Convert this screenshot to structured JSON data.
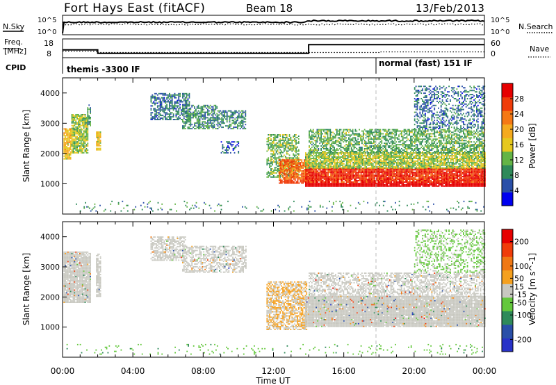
{
  "header": {
    "station": "Fort Hays East (fitACF)",
    "beam": "Beam 18",
    "date": "13/Feb/2013"
  },
  "noise_panel": {
    "left_label": "N.Sky",
    "left_ticks": [
      "10^5",
      "10^0"
    ],
    "right_ticks": [
      "10^5",
      "10^0"
    ],
    "right_label": "N.Search"
  },
  "freq_panel": {
    "left_label_line1": "Freq.",
    "left_label_line2": "[MHz]",
    "left_ticks": [
      "18",
      "8"
    ],
    "right_ticks": [
      "60",
      "0"
    ],
    "right_label": "Nave",
    "freq_steps": [
      {
        "t_start": 0.0,
        "t_end": 2.0,
        "mhz": 12.5
      },
      {
        "t_start": 2.0,
        "t_end": 14.0,
        "mhz": 10.5
      },
      {
        "t_start": 14.0,
        "t_end": 24.0,
        "mhz": 15.5
      }
    ],
    "nave_steps": [
      {
        "t_start": 0.0,
        "t_end": 2.0,
        "value": 22
      },
      {
        "t_start": 2.0,
        "t_end": 18.0,
        "value": 18
      },
      {
        "t_start": 18.0,
        "t_end": 24.0,
        "value": 20
      }
    ]
  },
  "cpid_panel": {
    "label": "CPID",
    "modes": [
      {
        "t_start": 0.0,
        "text": "themis -3300 IF"
      },
      {
        "t_start": 18.0,
        "text": "normal (fast) 151 IF"
      }
    ]
  },
  "x_axis": {
    "title": "Time UT",
    "ticks": [
      "00:00",
      "04:00",
      "08:00",
      "12:00",
      "16:00",
      "20:00",
      "00:00"
    ]
  },
  "chart_data": [
    {
      "type": "heatmap",
      "name": "power",
      "xlabel": "Time UT",
      "ylabel": "Slant Range [km]",
      "xlim": [
        0,
        24
      ],
      "ylim": [
        0,
        4500
      ],
      "yticks": [
        "1000",
        "2000",
        "3000",
        "4000"
      ],
      "colorbar": {
        "label": "Power [dB]",
        "ticks": [
          "28",
          "24",
          "20",
          "16",
          "12",
          "8",
          "4"
        ],
        "tick_values": [
          28,
          24,
          20,
          16,
          12,
          8,
          4
        ],
        "colors": [
          "#0000f0",
          "#2a4fa8",
          "#2f8a5a",
          "#64b446",
          "#e6c81e",
          "#f5aa1e",
          "#f57814",
          "#f03c0a",
          "#e60000"
        ],
        "range": [
          0,
          32
        ]
      },
      "blobs": [
        {
          "t": [
            0.05,
            0.5
          ],
          "r": [
            1800,
            2800
          ],
          "level": 18,
          "density": 0.9
        },
        {
          "t": [
            0.5,
            1.4
          ],
          "r": [
            2000,
            3300
          ],
          "level": 14,
          "density": 0.85
        },
        {
          "t": [
            1.4,
            1.6
          ],
          "r": [
            2900,
            3600
          ],
          "level": 9,
          "density": 0.7
        },
        {
          "t": [
            1.9,
            2.2
          ],
          "r": [
            2100,
            2700
          ],
          "level": 17,
          "density": 0.85
        },
        {
          "t": [
            5.0,
            7.2
          ],
          "r": [
            3100,
            4000
          ],
          "level": 7,
          "density": 0.6
        },
        {
          "t": [
            6.8,
            8.8
          ],
          "r": [
            2800,
            3600
          ],
          "level": 9,
          "density": 0.6
        },
        {
          "t": [
            8.8,
            10.4
          ],
          "r": [
            2800,
            3400
          ],
          "level": 8,
          "density": 0.55
        },
        {
          "t": [
            9.0,
            10.0
          ],
          "r": [
            2000,
            2400
          ],
          "level": 6,
          "density": 0.3
        },
        {
          "t": [
            11.6,
            13.4
          ],
          "r": [
            1200,
            2600
          ],
          "level": 12,
          "density": 0.6
        },
        {
          "t": [
            12.3,
            14.0
          ],
          "r": [
            1000,
            1800
          ],
          "level": 24,
          "density": 0.85
        },
        {
          "t": [
            13.8,
            24.0
          ],
          "r": [
            900,
            1500
          ],
          "level": 28,
          "density": 0.95
        },
        {
          "t": [
            13.8,
            24.0
          ],
          "r": [
            1500,
            2000
          ],
          "level": 14,
          "density": 0.85
        },
        {
          "t": [
            14.0,
            24.0
          ],
          "r": [
            2000,
            2800
          ],
          "level": 11,
          "density": 0.6
        },
        {
          "t": [
            20.0,
            24.0
          ],
          "r": [
            2800,
            4200
          ],
          "level": 7,
          "density": 0.4
        },
        {
          "t": [
            0.0,
            24.0
          ],
          "r": [
            80,
            400
          ],
          "level": 9,
          "density": 0.06
        }
      ]
    },
    {
      "type": "heatmap",
      "name": "velocity",
      "xlabel": "Time UT",
      "ylabel": "Slant Range [km]",
      "xlim": [
        0,
        24
      ],
      "ylim": [
        0,
        4500
      ],
      "yticks": [
        "1000",
        "2000",
        "3000",
        "4000"
      ],
      "colorbar": {
        "label": "Velocity [m s^-1]",
        "ticks": [
          "200",
          "100",
          "50",
          "15",
          "-15",
          "-50",
          "-100",
          "-200"
        ],
        "tick_values": [
          200,
          100,
          50,
          15,
          -15,
          -50,
          -100,
          -200
        ],
        "colors": [
          "#2832c8",
          "#2a4fa8",
          "#2f8a5a",
          "#64c83c",
          "#c8c8c0",
          "#f5a01e",
          "#f07814",
          "#f03c0a",
          "#e60000"
        ],
        "range": [
          -250,
          250
        ]
      },
      "blobs": [
        {
          "t": [
            0.05,
            1.6
          ],
          "r": [
            1800,
            3500
          ],
          "level": 0,
          "density": 0.9
        },
        {
          "t": [
            1.9,
            2.2
          ],
          "r": [
            2000,
            3400
          ],
          "level": 0,
          "density": 0.8
        },
        {
          "t": [
            5.0,
            7.0
          ],
          "r": [
            3200,
            4000
          ],
          "level": 0,
          "density": 0.6
        },
        {
          "t": [
            6.8,
            10.4
          ],
          "r": [
            2800,
            3700
          ],
          "level": 0,
          "density": 0.55
        },
        {
          "t": [
            11.6,
            13.9
          ],
          "r": [
            900,
            2500
          ],
          "level": 30,
          "density": 0.7
        },
        {
          "t": [
            13.8,
            24.0
          ],
          "r": [
            1000,
            2000
          ],
          "level": 0,
          "density": 0.95
        },
        {
          "t": [
            14.0,
            24.0
          ],
          "r": [
            2000,
            2800
          ],
          "level": 0,
          "density": 0.55
        },
        {
          "t": [
            20.0,
            24.0
          ],
          "r": [
            2800,
            4200
          ],
          "level": -40,
          "density": 0.35
        },
        {
          "t": [
            0.0,
            24.0
          ],
          "r": [
            80,
            400
          ],
          "level": -60,
          "density": 0.06
        }
      ]
    }
  ]
}
